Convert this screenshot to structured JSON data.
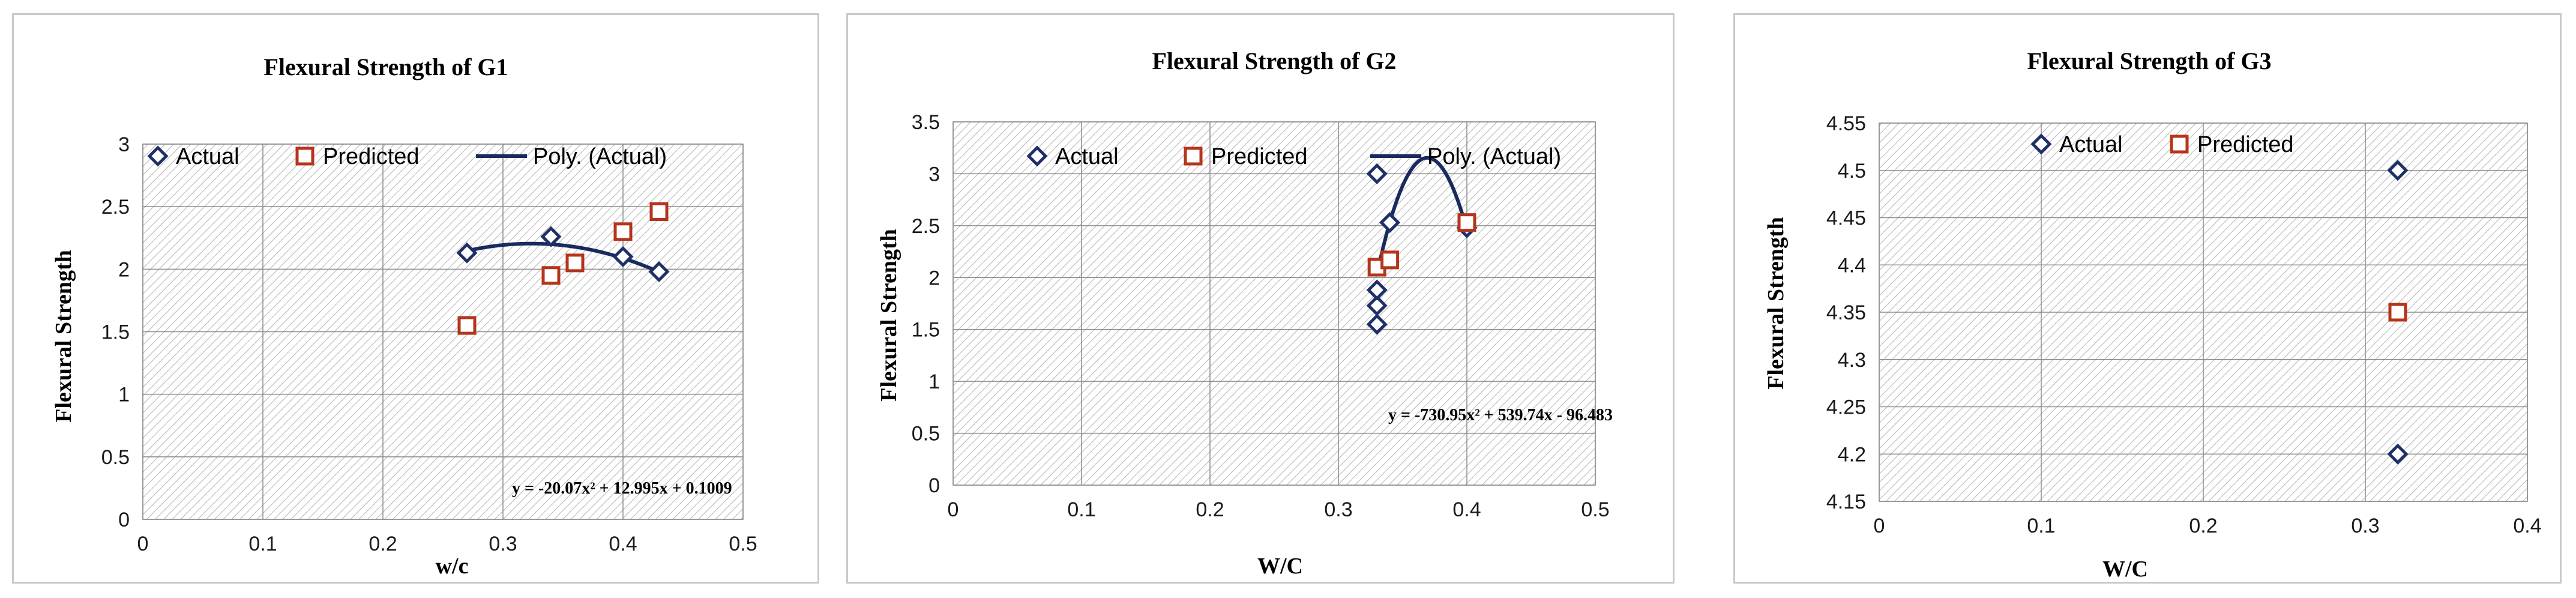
{
  "colors": {
    "actual": "#1f3068",
    "predicted": "#b5341b",
    "trend": "#1a2a5e",
    "grid": "#8c8c8c",
    "hatch": "#b3b3b3"
  },
  "chart_data": [
    {
      "type": "scatter",
      "title": "Flexural Strength of G1",
      "xlabel": "w/c",
      "ylabel": "Flexural Strength",
      "xlim": [
        0,
        0.5
      ],
      "ylim": [
        0,
        3
      ],
      "xticks": [
        "0",
        "0.1",
        "0.2",
        "0.3",
        "0.4",
        "0.5"
      ],
      "yticks": [
        "0",
        "0.5",
        "1",
        "1.5",
        "2",
        "2.5",
        "3"
      ],
      "legend": [
        "Actual",
        "Predicted",
        "Poly. (Actual)"
      ],
      "series": [
        {
          "name": "Actual",
          "marker": "diamond",
          "x": [
            0.27,
            0.34,
            0.4,
            0.43
          ],
          "y": [
            2.13,
            2.26,
            2.1,
            1.98
          ]
        },
        {
          "name": "Predicted",
          "marker": "square",
          "x": [
            0.27,
            0.34,
            0.36,
            0.4,
            0.43
          ],
          "y": [
            1.55,
            1.95,
            2.05,
            2.3,
            2.46
          ]
        }
      ],
      "trendline": {
        "name": "Poly. (Actual)",
        "coef": [
          -20.07,
          12.995,
          0.1009
        ],
        "range": [
          0.27,
          0.43
        ],
        "equation": "y = -20.07x² + 12.995x + 0.1009"
      }
    },
    {
      "type": "scatter",
      "title": "Flexural Strength of G2",
      "xlabel": "W/C",
      "ylabel": "Flexural Strength",
      "xlim": [
        0,
        0.5
      ],
      "ylim": [
        0,
        3.5
      ],
      "xticks": [
        "0",
        "0.1",
        "0.2",
        "0.3",
        "0.4",
        "0.5"
      ],
      "yticks": [
        "0",
        "0.5",
        "1",
        "1.5",
        "2",
        "2.5",
        "3",
        "3.5"
      ],
      "legend": [
        "Actual",
        "Predicted",
        "Poly. (Actual)"
      ],
      "series": [
        {
          "name": "Actual",
          "marker": "diamond",
          "x": [
            0.33,
            0.33,
            0.33,
            0.33,
            0.34,
            0.4
          ],
          "y": [
            1.55,
            1.73,
            1.88,
            3.0,
            2.53,
            2.48
          ]
        },
        {
          "name": "Predicted",
          "marker": "square",
          "x": [
            0.33,
            0.34,
            0.4
          ],
          "y": [
            2.1,
            2.17,
            2.53
          ]
        }
      ],
      "trendline": {
        "name": "Poly. (Actual)",
        "coef": [
          -730.95,
          539.74,
          -96.483
        ],
        "range": [
          0.331,
          0.4
        ],
        "equation": "y = -730.95x² + 539.74x - 96.483"
      }
    },
    {
      "type": "scatter",
      "title": "Flexural Strength of G3",
      "xlabel": "W/C",
      "ylabel": "Flexural Strength",
      "xlim": [
        0,
        0.4
      ],
      "ylim": [
        4.15,
        4.55
      ],
      "xticks": [
        "0",
        "0.1",
        "0.2",
        "0.3",
        "0.4"
      ],
      "yticks": [
        "4.15",
        "4.2",
        "4.25",
        "4.3",
        "4.35",
        "4.4",
        "4.45",
        "4.5",
        "4.55"
      ],
      "legend": [
        "Actual",
        "Predicted"
      ],
      "series": [
        {
          "name": "Actual",
          "marker": "diamond",
          "x": [
            0.32,
            0.32
          ],
          "y": [
            4.5,
            4.2
          ]
        },
        {
          "name": "Predicted",
          "marker": "square",
          "x": [
            0.32
          ],
          "y": [
            4.35
          ]
        }
      ]
    }
  ]
}
